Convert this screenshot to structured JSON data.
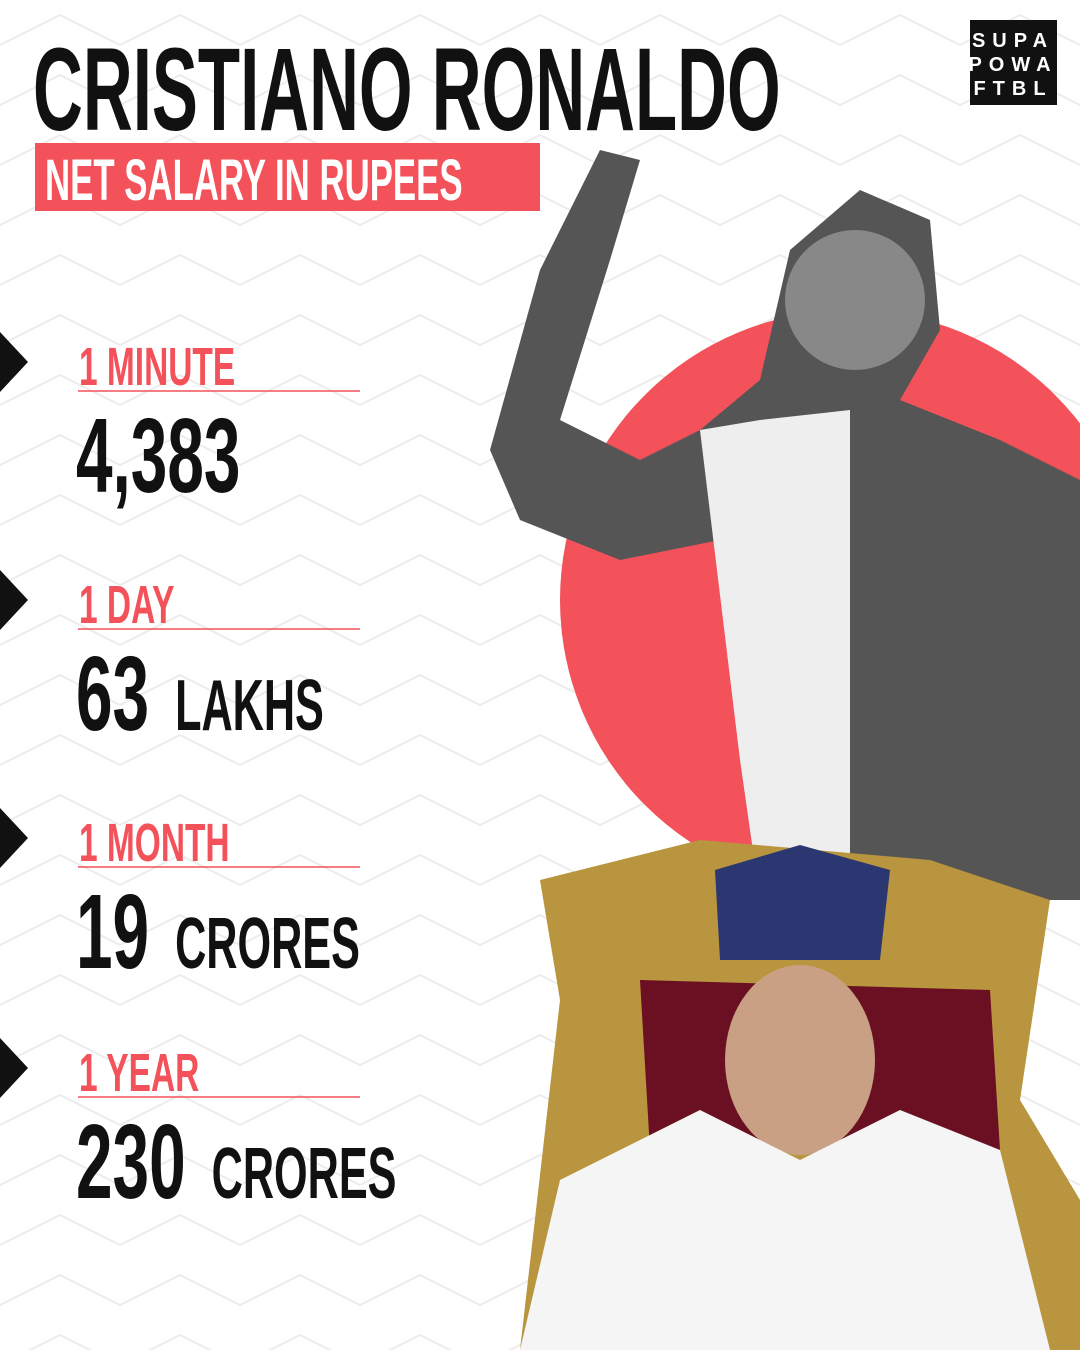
{
  "header": {
    "title": "CRISTIANO RONALDO",
    "subtitle": "NET SALARY IN RUPEES"
  },
  "logo": {
    "lines": [
      "SUPA",
      "POWA",
      "FTBL"
    ]
  },
  "items": [
    {
      "period": "1 MINUTE",
      "amount": "4,383"
    },
    {
      "period": "1 DAY",
      "amount": "63",
      "unit": "LAKHS"
    },
    {
      "period": "1 MONTH",
      "amount": "19",
      "unit": "CRORES"
    },
    {
      "period": "1 YEAR",
      "amount": "230",
      "unit": "CRORES"
    }
  ]
}
